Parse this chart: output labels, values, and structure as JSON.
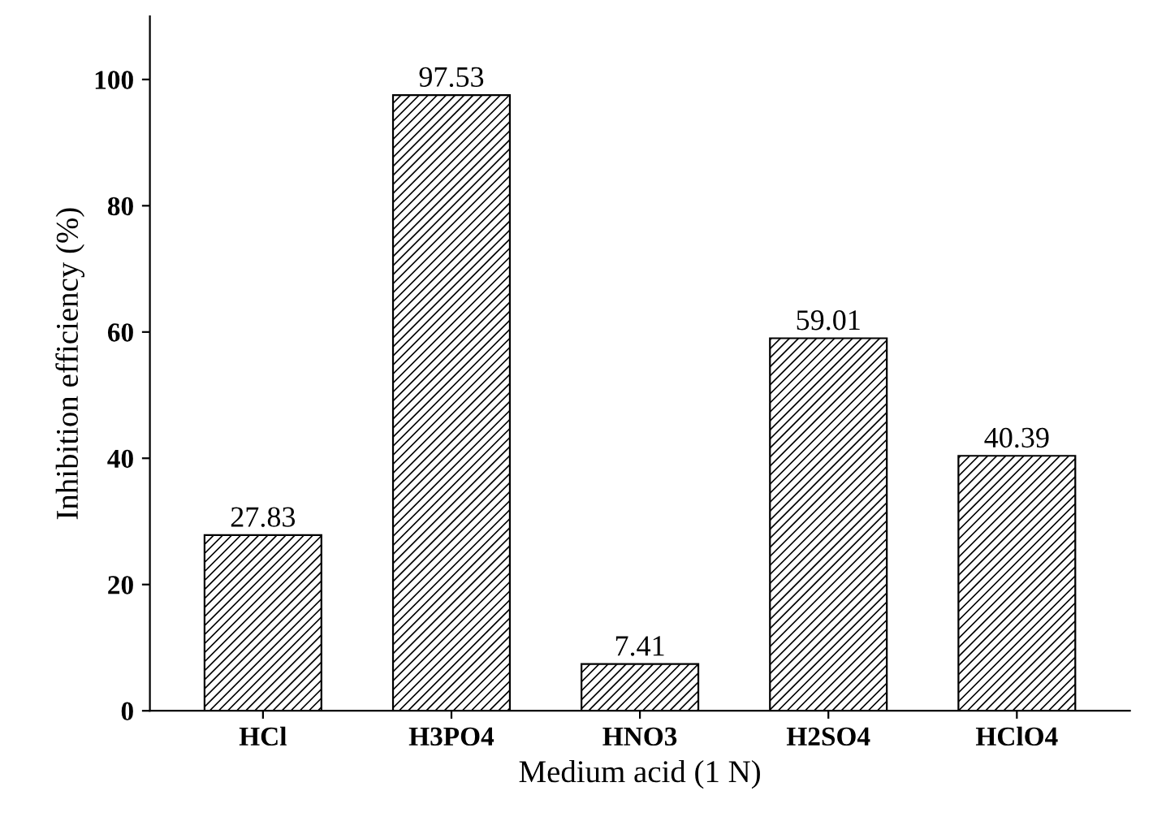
{
  "chart_data": {
    "type": "bar",
    "xlabel": "Medium acid (1 N)",
    "ylabel": "Inhibition efficiency (%)",
    "categories": [
      "HCl",
      "H3PO4",
      "HNO3",
      "H2SO4",
      "HClO4"
    ],
    "values": [
      27.83,
      97.53,
      7.41,
      59.01,
      40.39
    ],
    "color": "#000000",
    "ylim": [
      0,
      110
    ],
    "yticks": [
      0,
      20,
      40,
      60,
      80,
      100
    ],
    "grid": false,
    "data_labels": true
  }
}
